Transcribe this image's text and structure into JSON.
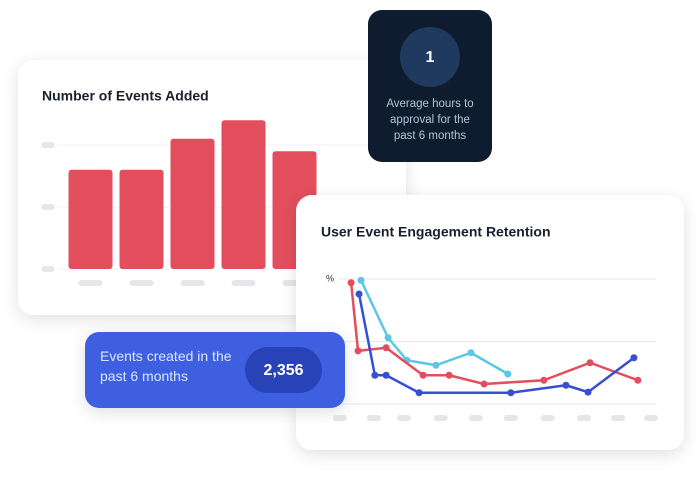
{
  "chart_data": [
    {
      "type": "bar",
      "title": "Number of Events Added",
      "categories": [
        null,
        null,
        null,
        null,
        null
      ],
      "values": [
        1.6,
        1.6,
        2.1,
        2.4,
        1.9
      ],
      "color": "#e24e5c",
      "ylim": [
        0,
        2.5
      ],
      "yticks": [
        0,
        1,
        2
      ],
      "grid": true
    },
    {
      "type": "line",
      "title": "User Event Engagement Retention",
      "xlim": [
        0,
        10
      ],
      "xticks": [
        0.3,
        1.33,
        2.24,
        3.36,
        4.42,
        5.48,
        6.6,
        7.7,
        8.73,
        9.73
      ],
      "ylim": [
        0,
        2.2
      ],
      "yticks": [
        0,
        1,
        {
          "value": 2,
          "label": "%"
        }
      ],
      "grid": true,
      "series": [
        {
          "color": "#5cc6e6",
          "x": [
            0.94,
            1.76,
            2.33,
            3.21,
            4.27,
            5.39
          ],
          "values": [
            1.98,
            1.06,
            0.7,
            0.62,
            0.82,
            0.48
          ]
        },
        {
          "color": "#e24e5c",
          "x": [
            0.64,
            0.85,
            1.7,
            2.82,
            3.61,
            4.67,
            6.48,
            7.88,
            9.33
          ],
          "values": [
            1.94,
            0.85,
            0.9,
            0.46,
            0.46,
            0.32,
            0.38,
            0.66,
            0.38
          ]
        },
        {
          "color": "#3550d2",
          "x": [
            0.88,
            1.36,
            1.7,
            2.7,
            5.48,
            7.15,
            7.82,
            9.21
          ],
          "values": [
            1.76,
            0.46,
            0.46,
            0.18,
            0.18,
            0.3,
            0.19,
            0.74
          ]
        }
      ]
    }
  ],
  "cards": [
    {
      "value": "1",
      "label": "Average hours to approval for the past 6 months"
    },
    {
      "value": "2,356",
      "label": "Events created in the past 6 months"
    }
  ]
}
